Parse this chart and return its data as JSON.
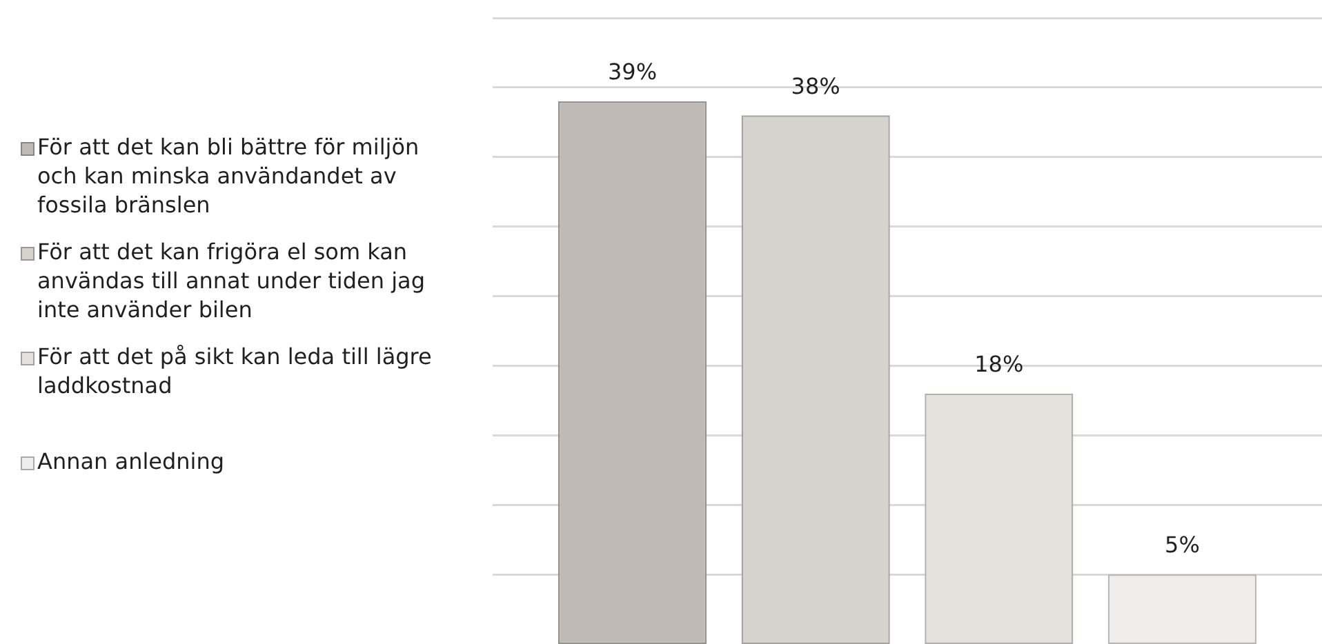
{
  "chart_data": {
    "type": "bar",
    "categories": [
      null
    ],
    "series": [
      {
        "name": "För att det kan bli bättre för miljön och kan minska användandet av fossila bränslen",
        "color": "#bfbab5",
        "values": [
          39
        ],
        "value_labels": [
          "39%"
        ]
      },
      {
        "name": "För att det kan frigöra el som kan användas till annat under tiden jag inte använder bilen",
        "color": "#d6d2cd",
        "values": [
          38
        ],
        "value_labels": [
          "38%"
        ]
      },
      {
        "name": "För att det på sikt kan leda till lägre laddkostnad",
        "color": "#e4e0dc",
        "values": [
          18
        ],
        "value_labels": [
          "18%"
        ]
      },
      {
        "name": "Annan anledning",
        "color": "#efedeb",
        "values": [
          5
        ],
        "value_labels": [
          "5%"
        ]
      }
    ],
    "ylim": [
      0,
      45
    ],
    "yticks": [
      5,
      10,
      15,
      20,
      25,
      30,
      35,
      40,
      45
    ],
    "grid": "y",
    "legend": "left",
    "tick_labels": false
  }
}
